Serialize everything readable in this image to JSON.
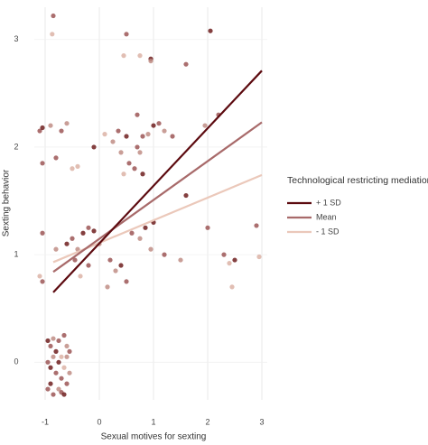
{
  "chart_data": {
    "type": "scatter",
    "x_label": "Sexual motives for sexting",
    "y_label": "Sexting behavior",
    "xlim": [
      -1.2,
      3.1
    ],
    "ylim": [
      -0.35,
      3.3
    ],
    "xticks": [
      -1,
      0,
      1,
      2,
      3
    ],
    "yticks": [
      0,
      1,
      2,
      3
    ],
    "grid": true,
    "legend_title": "Technological restricting mediation",
    "legend": "right",
    "series": [
      {
        "name": "+ 1 SD",
        "color": "#5c0a0f",
        "x": [
          -0.85,
          3
        ],
        "values": [
          0.65,
          2.71
        ]
      },
      {
        "name": "Mean",
        "color": "#a86a6a",
        "x": [
          -0.85,
          3
        ],
        "values": [
          0.84,
          2.23
        ]
      },
      {
        "name": "- 1 SD",
        "color": "#ebc8ba",
        "x": [
          -0.85,
          3
        ],
        "values": [
          0.93,
          1.74
        ]
      }
    ],
    "points": [
      {
        "x": -0.95,
        "y": 0.2,
        "color": "#6e1f1f"
      },
      {
        "x": -0.9,
        "y": 0.15,
        "color": "#9c5656"
      },
      {
        "x": -0.85,
        "y": 0.22,
        "color": "#c08d85"
      },
      {
        "x": -0.8,
        "y": 0.1,
        "color": "#6e1f1f"
      },
      {
        "x": -0.75,
        "y": 0.2,
        "color": "#9c5656"
      },
      {
        "x": -0.7,
        "y": 0.05,
        "color": "#dcb3a6"
      },
      {
        "x": -0.65,
        "y": 0.25,
        "color": "#9c5656"
      },
      {
        "x": -0.6,
        "y": 0.15,
        "color": "#c08d85"
      },
      {
        "x": -0.95,
        "y": 0,
        "color": "#9c5656"
      },
      {
        "x": -0.9,
        "y": -0.05,
        "color": "#6e1f1f"
      },
      {
        "x": -0.85,
        "y": 0.05,
        "color": "#c08d85"
      },
      {
        "x": -0.8,
        "y": -0.1,
        "color": "#9c5656"
      },
      {
        "x": -0.75,
        "y": 0,
        "color": "#6e1f1f"
      },
      {
        "x": -0.7,
        "y": -0.15,
        "color": "#9c5656"
      },
      {
        "x": -0.65,
        "y": -0.05,
        "color": "#dcb3a6"
      },
      {
        "x": -0.6,
        "y": -0.2,
        "color": "#9c5656"
      },
      {
        "x": -0.55,
        "y": -0.1,
        "color": "#c08d85"
      },
      {
        "x": -0.9,
        "y": -0.2,
        "color": "#6e1f1f"
      },
      {
        "x": -0.85,
        "y": -0.3,
        "color": "#9c5656"
      },
      {
        "x": -0.75,
        "y": -0.25,
        "color": "#c08d85"
      },
      {
        "x": -0.7,
        "y": -0.28,
        "color": "#9c5656"
      },
      {
        "x": -0.65,
        "y": -0.3,
        "color": "#6e1f1f"
      },
      {
        "x": -0.95,
        "y": -0.25,
        "color": "#9c5656"
      },
      {
        "x": -0.6,
        "y": 0.05,
        "color": "#c08d85"
      },
      {
        "x": -0.55,
        "y": 0.1,
        "color": "#9c5656"
      },
      {
        "x": -0.85,
        "y": 3.22,
        "color": "#9c5656"
      },
      {
        "x": -0.87,
        "y": 3.05,
        "color": "#dcb3a6"
      },
      {
        "x": 0.5,
        "y": 3.05,
        "color": "#9c5656"
      },
      {
        "x": 0.95,
        "y": 2.82,
        "color": "#6e1f1f"
      },
      {
        "x": 1.6,
        "y": 2.77,
        "color": "#9c5656"
      },
      {
        "x": 2.05,
        "y": 3.08,
        "color": "#6e1f1f"
      },
      {
        "x": 0.75,
        "y": 2.85,
        "color": "#dcb3a6"
      },
      {
        "x": 0.45,
        "y": 2.85,
        "color": "#dcb3a6"
      },
      {
        "x": 0.95,
        "y": 2.8,
        "color": "#c08d85"
      },
      {
        "x": -1.1,
        "y": 2.15,
        "color": "#9c5656"
      },
      {
        "x": -1.05,
        "y": 2.18,
        "color": "#6e1f1f"
      },
      {
        "x": -0.9,
        "y": 2.2,
        "color": "#c08d85"
      },
      {
        "x": -0.8,
        "y": 1.9,
        "color": "#9c5656"
      },
      {
        "x": -1.05,
        "y": 1.85,
        "color": "#9c5656"
      },
      {
        "x": -0.5,
        "y": 1.8,
        "color": "#dcb3a6"
      },
      {
        "x": -0.4,
        "y": 1.82,
        "color": "#dcb3a6"
      },
      {
        "x": -0.7,
        "y": 2.15,
        "color": "#9c5656"
      },
      {
        "x": -0.6,
        "y": 2.22,
        "color": "#c08d85"
      },
      {
        "x": 0.1,
        "y": 2.12,
        "color": "#dcb3a6"
      },
      {
        "x": 0.25,
        "y": 2.05,
        "color": "#c08d85"
      },
      {
        "x": -0.1,
        "y": 2.0,
        "color": "#6e1f1f"
      },
      {
        "x": 0.35,
        "y": 2.15,
        "color": "#9c5656"
      },
      {
        "x": 0.4,
        "y": 1.95,
        "color": "#c08d85"
      },
      {
        "x": 0.5,
        "y": 2.1,
        "color": "#6e1f1f"
      },
      {
        "x": 0.7,
        "y": 2.0,
        "color": "#9c5656"
      },
      {
        "x": 0.75,
        "y": 1.95,
        "color": "#c08d85"
      },
      {
        "x": 0.8,
        "y": 2.1,
        "color": "#9c5656"
      },
      {
        "x": 1.0,
        "y": 2.2,
        "color": "#6e1f1f"
      },
      {
        "x": 1.1,
        "y": 2.22,
        "color": "#9c5656"
      },
      {
        "x": 1.2,
        "y": 2.15,
        "color": "#c08d85"
      },
      {
        "x": 0.65,
        "y": 1.8,
        "color": "#9c5656"
      },
      {
        "x": 0.8,
        "y": 1.75,
        "color": "#6e1f1f"
      },
      {
        "x": 0.9,
        "y": 2.12,
        "color": "#c08d85"
      },
      {
        "x": 1.35,
        "y": 2.1,
        "color": "#9c5656"
      },
      {
        "x": 0.45,
        "y": 1.75,
        "color": "#dcb3a6"
      },
      {
        "x": 0.55,
        "y": 1.85,
        "color": "#9c5656"
      },
      {
        "x": 1.6,
        "y": 1.55,
        "color": "#6e1f1f"
      },
      {
        "x": 2.2,
        "y": 2.3,
        "color": "#9c5656"
      },
      {
        "x": 1.95,
        "y": 2.2,
        "color": "#c08d85"
      },
      {
        "x": 0.7,
        "y": 2.3,
        "color": "#9c5656"
      },
      {
        "x": -1.05,
        "y": 1.2,
        "color": "#9c5656"
      },
      {
        "x": -1.1,
        "y": 0.8,
        "color": "#dcb3a6"
      },
      {
        "x": -1.05,
        "y": 0.75,
        "color": "#9c5656"
      },
      {
        "x": -0.8,
        "y": 1.05,
        "color": "#c08d85"
      },
      {
        "x": -0.6,
        "y": 1.1,
        "color": "#6e1f1f"
      },
      {
        "x": -0.5,
        "y": 1.15,
        "color": "#9c5656"
      },
      {
        "x": -0.4,
        "y": 1.05,
        "color": "#c08d85"
      },
      {
        "x": -0.3,
        "y": 1.2,
        "color": "#6e1f1f"
      },
      {
        "x": -0.2,
        "y": 1.25,
        "color": "#9c5656"
      },
      {
        "x": -0.1,
        "y": 1.22,
        "color": "#6e1f1f"
      },
      {
        "x": 0,
        "y": 1.1,
        "color": "#c08d85"
      },
      {
        "x": -0.2,
        "y": 0.9,
        "color": "#9c5656"
      },
      {
        "x": -0.35,
        "y": 0.8,
        "color": "#dcb3a6"
      },
      {
        "x": 0.2,
        "y": 0.95,
        "color": "#9c5656"
      },
      {
        "x": 0.3,
        "y": 0.85,
        "color": "#c08d85"
      },
      {
        "x": 0.4,
        "y": 0.9,
        "color": "#6e1f1f"
      },
      {
        "x": 0.6,
        "y": 1.2,
        "color": "#9c5656"
      },
      {
        "x": 0.75,
        "y": 1.15,
        "color": "#c08d85"
      },
      {
        "x": 0.85,
        "y": 1.25,
        "color": "#6e1f1f"
      },
      {
        "x": 0.5,
        "y": 0.75,
        "color": "#9c5656"
      },
      {
        "x": 0.15,
        "y": 0.7,
        "color": "#c08d85"
      },
      {
        "x": -0.45,
        "y": 0.95,
        "color": "#9c5656"
      },
      {
        "x": 1.0,
        "y": 1.3,
        "color": "#6e1f1f"
      },
      {
        "x": 1.2,
        "y": 1.0,
        "color": "#9c5656"
      },
      {
        "x": 1.5,
        "y": 0.95,
        "color": "#c08d85"
      },
      {
        "x": 2.0,
        "y": 1.25,
        "color": "#9c5656"
      },
      {
        "x": 2.5,
        "y": 0.95,
        "color": "#6e1f1f"
      },
      {
        "x": 2.4,
        "y": 0.92,
        "color": "#dcb3a6"
      },
      {
        "x": 2.95,
        "y": 0.98,
        "color": "#dcb3a6"
      },
      {
        "x": 2.45,
        "y": 0.7,
        "color": "#dcb3a6"
      },
      {
        "x": 2.9,
        "y": 1.27,
        "color": "#9c5656"
      },
      {
        "x": 2.3,
        "y": 1.0,
        "color": "#9c5656"
      },
      {
        "x": 0.95,
        "y": 1.05,
        "color": "#c08d85"
      }
    ]
  }
}
